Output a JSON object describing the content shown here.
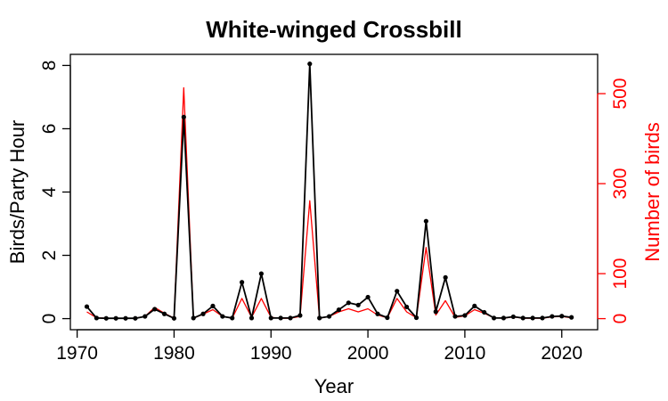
{
  "chart_data": {
    "type": "line",
    "title": "White-winged Crossbill",
    "xlabel": "Year",
    "ylabel": "Birds/Party Hour",
    "y2label": "Number of birds",
    "xlim": [
      1969.3,
      2023.7
    ],
    "ylim": [
      -0.35,
      8.35
    ],
    "y2lim": [
      -24.6,
      587.3
    ],
    "x_ticks": [
      1970,
      1980,
      1990,
      2000,
      2010,
      2020
    ],
    "y_ticks": [
      0,
      2,
      4,
      6,
      8
    ],
    "y2_ticks": [
      0,
      100,
      300,
      500
    ],
    "grid": false,
    "legend": "none",
    "x": [
      1971,
      1972,
      1973,
      1974,
      1975,
      1976,
      1977,
      1978,
      1979,
      1980,
      1981,
      1982,
      1983,
      1984,
      1985,
      1986,
      1987,
      1988,
      1989,
      1990,
      1991,
      1992,
      1993,
      1994,
      1995,
      1996,
      1997,
      1998,
      1999,
      2000,
      2001,
      2002,
      2003,
      2004,
      2005,
      2006,
      2007,
      2008,
      2009,
      2010,
      2011,
      2012,
      2013,
      2014,
      2015,
      2016,
      2017,
      2018,
      2019,
      2020,
      2021
    ],
    "series": [
      {
        "axis": "left",
        "color": "#000000",
        "markers": true,
        "values": [
          0.38,
          0.02,
          0.01,
          0.01,
          0.01,
          0.01,
          0.07,
          0.3,
          0.15,
          0.01,
          6.37,
          0.02,
          0.15,
          0.4,
          0.07,
          0.02,
          1.15,
          0.02,
          1.42,
          0.02,
          0.02,
          0.02,
          0.1,
          8.05,
          0.02,
          0.07,
          0.28,
          0.5,
          0.43,
          0.68,
          0.15,
          0.03,
          0.87,
          0.37,
          0.03,
          3.08,
          0.22,
          1.3,
          0.07,
          0.1,
          0.4,
          0.2,
          0.02,
          0.02,
          0.06,
          0.02,
          0.02,
          0.02,
          0.07,
          0.08,
          0.04
        ]
      },
      {
        "axis": "right",
        "color": "#ff0000",
        "markers": false,
        "values": [
          15,
          2,
          1,
          1,
          1,
          1,
          5,
          25,
          12,
          1,
          513,
          1,
          10,
          20,
          5,
          1,
          45,
          3,
          45,
          3,
          1,
          1,
          5,
          262,
          1,
          5,
          15,
          22,
          15,
          22,
          8,
          2,
          45,
          15,
          2,
          158,
          8,
          40,
          3,
          6,
          20,
          12,
          2,
          1,
          4,
          1,
          1,
          1,
          4,
          5,
          2
        ]
      }
    ]
  }
}
